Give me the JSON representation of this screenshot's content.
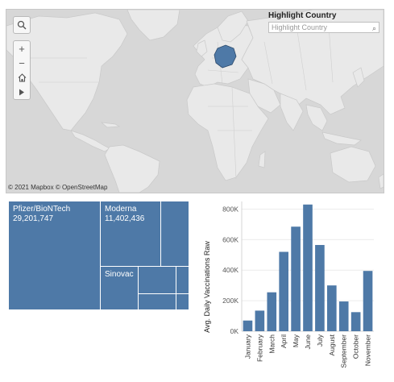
{
  "map": {
    "highlight_label": "Highlight Country",
    "highlight_placeholder": "Highlight Country",
    "attribution": "© 2021 Mapbox  © OpenStreetMap",
    "colors": {
      "ocean": "#d7d7d7",
      "land": "#e9e9e9",
      "border": "#c9c9c9",
      "highlight": "#4e79a7"
    },
    "highlighted_country": "Germany"
  },
  "treemap": {
    "color": "#4e79a7",
    "cells": [
      {
        "name": "Pfizer/BioNTech",
        "value": "29,201,747"
      },
      {
        "name": "Moderna",
        "value": "11,402,436"
      },
      {
        "name": "Sinovac",
        "value": ""
      }
    ]
  },
  "chart_data": {
    "type": "bar",
    "ylabel": "Avg. Daily Vaccinations Raw",
    "xlabel": "",
    "categories": [
      "January",
      "February",
      "March",
      "April",
      "May",
      "June",
      "July",
      "August",
      "September",
      "October",
      "November"
    ],
    "values": [
      70000,
      135000,
      255000,
      520000,
      685000,
      830000,
      565000,
      300000,
      195000,
      125000,
      395000
    ],
    "ylim": [
      0,
      850000
    ],
    "yticks": [
      0,
      200000,
      400000,
      600000,
      800000
    ],
    "ytick_labels": [
      "0K",
      "200K",
      "400K",
      "600K",
      "800K"
    ],
    "grid": true,
    "color": "#4e79a7"
  }
}
